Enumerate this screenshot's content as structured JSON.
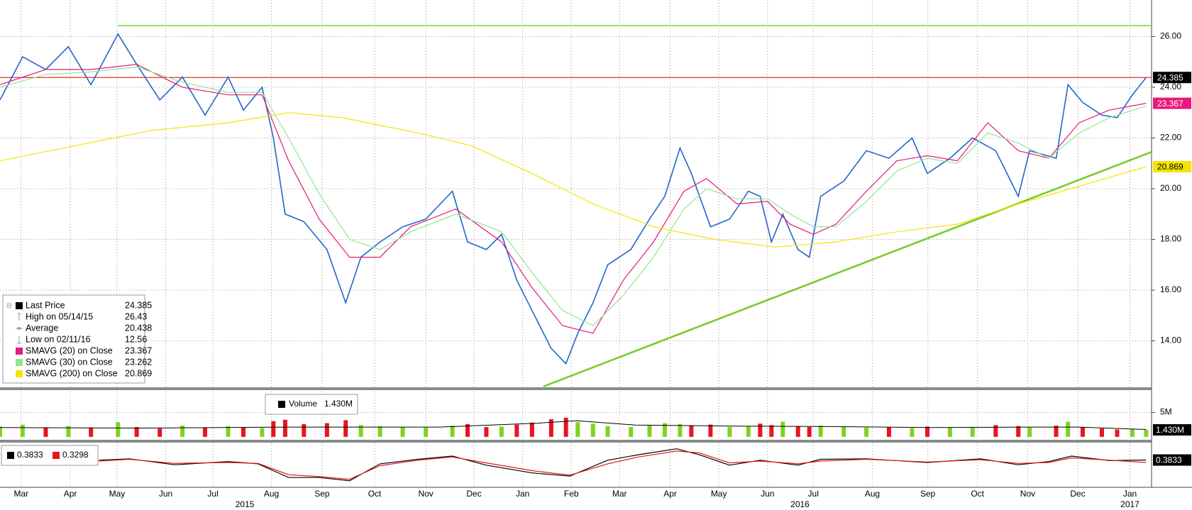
{
  "chart_data": [
    {
      "type": "line",
      "x": [
        2.07,
        2.53,
        3.0,
        3.46,
        3.92,
        4.47,
        4.85,
        5.32,
        5.78,
        6.24,
        6.71,
        7.02,
        7.4,
        7.63,
        7.87,
        8.25,
        8.72,
        9.1,
        9.41,
        9.8,
        10.26,
        10.73,
        11.27,
        11.58,
        11.96,
        12.27,
        12.58,
        12.89,
        13.28,
        13.58,
        13.82,
        14.13,
        14.43,
        14.9,
        15.28,
        15.59,
        15.9,
        16.13,
        16.52,
        16.91,
        17.29,
        17.53,
        17.76,
        17.99,
        18.3,
        18.53,
        18.76,
        19.23,
        19.69,
        20.15,
        20.62,
        20.93,
        21.39,
        21.85,
        22.32,
        22.78,
        23.01,
        23.55,
        23.79,
        24.09,
        24.48,
        24.79,
        25.1,
        25.38
      ],
      "series": [
        {
          "name": "Last Price",
          "color": "#2266cc",
          "legend_color": "#000000",
          "tag": true,
          "tag_text": "#ffffff",
          "legend_value": 24.385,
          "values": [
            23.5,
            25.2,
            24.7,
            25.6,
            24.1,
            26.1,
            24.9,
            23.5,
            24.4,
            22.9,
            24.4,
            23.1,
            24.0,
            22.0,
            19.0,
            18.7,
            17.6,
            15.5,
            17.3,
            17.9,
            18.5,
            18.8,
            19.9,
            17.9,
            17.6,
            18.2,
            16.4,
            15.2,
            13.7,
            13.1,
            14.3,
            15.5,
            17.0,
            17.6,
            18.8,
            19.7,
            21.6,
            20.6,
            18.5,
            18.8,
            19.9,
            19.7,
            17.9,
            19.0,
            17.6,
            17.3,
            19.7,
            20.3,
            21.5,
            21.2,
            22.0,
            20.6,
            21.2,
            22.0,
            21.5,
            19.7,
            21.5,
            21.2,
            24.1,
            23.4,
            22.9,
            22.8,
            23.7,
            24.385
          ]
        },
        {
          "name": "SMAVG (20) on Close",
          "color": "#e8197d",
          "tag": true,
          "tag_text": "#ffffff",
          "legend_value": 23.367,
          "x": [
            2.07,
            3.0,
            3.92,
            4.85,
            5.78,
            6.71,
            7.4,
            7.94,
            8.56,
            9.18,
            9.8,
            10.42,
            11.34,
            12.27,
            12.89,
            13.51,
            14.13,
            14.75,
            15.36,
            15.98,
            16.44,
            17.06,
            17.68,
            18.14,
            18.61,
            19.07,
            19.69,
            20.31,
            20.93,
            21.54,
            22.16,
            22.78,
            23.4,
            24.02,
            24.63,
            25.38
          ],
          "values": [
            24.1,
            24.7,
            24.7,
            24.9,
            24.0,
            23.7,
            23.7,
            21.1,
            18.8,
            17.3,
            17.3,
            18.5,
            19.2,
            17.9,
            16.1,
            14.6,
            14.3,
            16.4,
            17.9,
            19.9,
            20.4,
            19.4,
            19.5,
            18.6,
            18.2,
            18.6,
            19.9,
            21.1,
            21.3,
            21.1,
            22.6,
            21.5,
            21.2,
            22.6,
            23.1,
            23.367
          ]
        },
        {
          "name": "SMAVG (30) on Close",
          "color": "#8ee88e",
          "tag": false,
          "legend_value": 23.262,
          "x": [
            2.07,
            3.0,
            3.92,
            4.85,
            5.78,
            6.71,
            7.4,
            7.94,
            8.56,
            9.18,
            9.8,
            10.42,
            11.34,
            12.27,
            12.89,
            13.51,
            14.13,
            14.75,
            15.36,
            15.98,
            16.44,
            17.06,
            17.68,
            18.14,
            18.61,
            19.07,
            19.69,
            20.31,
            20.93,
            21.54,
            22.16,
            22.78,
            23.4,
            24.02,
            24.63,
            25.38
          ],
          "values": [
            24.0,
            24.5,
            24.6,
            24.8,
            24.2,
            23.8,
            23.8,
            22.0,
            19.8,
            18.0,
            17.6,
            18.3,
            19.0,
            18.3,
            16.7,
            15.2,
            14.6,
            15.8,
            17.3,
            19.2,
            20.0,
            19.6,
            19.6,
            19.0,
            18.5,
            18.5,
            19.5,
            20.7,
            21.2,
            21.0,
            22.2,
            21.8,
            21.2,
            22.2,
            22.8,
            23.262
          ]
        },
        {
          "name": "SMAVG (200) on Close",
          "color": "#f2e600",
          "tag": true,
          "tag_text": "#000000",
          "legend_value": 20.869,
          "x": [
            2.07,
            3.62,
            5.16,
            6.71,
            7.94,
            9.03,
            10.57,
            11.65,
            12.89,
            14.13,
            15.36,
            16.6,
            17.83,
            19.07,
            20.31,
            21.54,
            22.78,
            24.02,
            25.38
          ],
          "values": [
            21.1,
            21.7,
            22.3,
            22.6,
            23.0,
            22.8,
            22.2,
            21.7,
            20.6,
            19.4,
            18.5,
            18.0,
            17.7,
            17.9,
            18.3,
            18.6,
            19.4,
            20.1,
            20.869
          ]
        }
      ],
      "stats": [
        {
          "name": "High on 05/14/15",
          "value": 26.43
        },
        {
          "name": "Average",
          "value": 20.438
        },
        {
          "name": "Low on 02/11/16",
          "value": 12.56
        }
      ],
      "high_x": 4.47,
      "high_line_color": "#66dd33",
      "last_line_color": "#e8302a",
      "trendline": {
        "color": "#77cc22",
        "x": [
          13.12,
          25.49
        ],
        "values": [
          12.2,
          21.45
        ]
      },
      "xlim": [
        2.07,
        25.49
      ],
      "ylim": [
        12.17,
        27.44
      ],
      "yticks": [
        {
          "value": 14,
          "label": "14.00"
        },
        {
          "value": 16,
          "label": "16.00"
        },
        {
          "value": 18,
          "label": "18.00"
        },
        {
          "value": 20,
          "label": "20.00"
        },
        {
          "value": 22,
          "label": "22.00"
        },
        {
          "value": 24,
          "label": "24.00"
        },
        {
          "value": 26,
          "label": "26.00"
        }
      ],
      "xticks": [
        {
          "value": 2.5,
          "label": "Mar"
        },
        {
          "value": 3.5,
          "label": "Apr"
        },
        {
          "value": 4.45,
          "label": "May"
        },
        {
          "value": 5.44,
          "label": "Jun"
        },
        {
          "value": 6.4,
          "label": "Jul"
        },
        {
          "value": 7.59,
          "label": "Aug"
        },
        {
          "value": 8.62,
          "label": "Sep"
        },
        {
          "value": 9.69,
          "label": "Oct"
        },
        {
          "value": 10.73,
          "label": "Nov"
        },
        {
          "value": 11.71,
          "label": "Dec"
        },
        {
          "value": 12.7,
          "label": "Jan"
        },
        {
          "value": 13.69,
          "label": "Feb"
        },
        {
          "value": 14.67,
          "label": "Mar"
        },
        {
          "value": 15.7,
          "label": "Apr"
        },
        {
          "value": 16.69,
          "label": "May"
        },
        {
          "value": 17.68,
          "label": "Jun"
        },
        {
          "value": 18.61,
          "label": "Jul"
        },
        {
          "value": 19.81,
          "label": "Aug"
        },
        {
          "value": 20.94,
          "label": "Sep"
        },
        {
          "value": 21.95,
          "label": "Oct"
        },
        {
          "value": 22.97,
          "label": "Nov"
        },
        {
          "value": 23.99,
          "label": "Dec"
        },
        {
          "value": 25.05,
          "label": "Jan"
        }
      ],
      "year_ticks": [
        {
          "value": 7.05,
          "label": "2015"
        },
        {
          "value": 18.34,
          "label": "2016"
        },
        {
          "value": 25.05,
          "label": "2017"
        }
      ],
      "grid": true,
      "legend": "lower left"
    },
    {
      "type": "bar",
      "legend_name": "Volume",
      "value": 1.43,
      "value_label": "1.430M",
      "up_color": "#7ed321",
      "down_color": "#e8141e",
      "values": [
        2.1,
        2.5,
        1.8,
        2.2,
        1.9,
        3.0,
        2.0,
        1.7,
        2.3,
        1.9,
        2.2,
        2.0,
        1.8,
        3.2,
        3.5,
        2.6,
        2.8,
        3.4,
        2.4,
        2.2,
        2.0,
        1.9,
        2.3,
        2.6,
        2.0,
        2.1,
        2.5,
        2.9,
        3.6,
        3.9,
        3.0,
        2.7,
        2.2,
        2.0,
        2.4,
        2.8,
        2.6,
        2.3,
        2.5,
        2.0,
        2.2,
        2.7,
        2.4,
        3.1,
        2.2,
        2.0,
        2.3,
        2.1,
        1.9,
        2.0,
        1.8,
        2.1,
        1.9,
        2.0,
        2.4,
        2.2,
        1.9,
        2.3,
        3.1,
        2.0,
        1.7,
        1.5,
        1.6,
        1.43
      ],
      "average": {
        "color": "#000000",
        "x": [
          2.07,
          5,
          8,
          11,
          13,
          13.8,
          15,
          17,
          19,
          21,
          23,
          24,
          25.38
        ],
        "values": [
          1.9,
          1.8,
          2.0,
          2.0,
          2.8,
          3.3,
          2.4,
          2.2,
          2.1,
          1.9,
          2.0,
          2.0,
          1.5
        ]
      },
      "ylim": [
        -0.45,
        9.4
      ],
      "yticks": [
        {
          "value": 5,
          "label": "5M"
        }
      ]
    },
    {
      "type": "line",
      "ylim": [
        -0.2,
        0.75
      ],
      "series": [
        {
          "color": "#000000",
          "legend_value": 0.3833,
          "tag": true,
          "x": [
            4.08,
            4.7,
            5.62,
            6.71,
            7.32,
            7.94,
            8.56,
            9.18,
            9.8,
            10.57,
            11.27,
            11.96,
            12.89,
            13.66,
            14.43,
            15.05,
            15.83,
            16.29,
            16.91,
            17.53,
            18.3,
            18.76,
            19.69,
            20.93,
            22.01,
            22.78,
            23.4,
            23.86,
            24.64,
            25.38
          ],
          "values": [
            0.38,
            0.41,
            0.28,
            0.35,
            0.3,
            0.0,
            0.0,
            -0.07,
            0.3,
            0.4,
            0.47,
            0.27,
            0.1,
            0.03,
            0.38,
            0.5,
            0.63,
            0.5,
            0.27,
            0.38,
            0.27,
            0.4,
            0.41,
            0.33,
            0.41,
            0.28,
            0.35,
            0.47,
            0.37,
            0.3833
          ]
        },
        {
          "color": "#e8141e",
          "legend_value": 0.3298,
          "tag": false,
          "x": [
            4.08,
            4.7,
            5.62,
            6.71,
            7.32,
            7.94,
            8.56,
            9.18,
            9.8,
            10.57,
            11.27,
            11.96,
            12.89,
            13.66,
            14.43,
            15.05,
            15.83,
            16.29,
            16.91,
            17.53,
            18.3,
            18.76,
            19.69,
            20.93,
            22.01,
            22.78,
            23.4,
            23.86,
            24.64,
            25.38
          ],
          "values": [
            0.36,
            0.4,
            0.31,
            0.33,
            0.31,
            0.06,
            0.02,
            -0.04,
            0.26,
            0.38,
            0.45,
            0.32,
            0.15,
            0.05,
            0.3,
            0.45,
            0.58,
            0.54,
            0.32,
            0.36,
            0.3,
            0.36,
            0.4,
            0.34,
            0.39,
            0.31,
            0.33,
            0.43,
            0.38,
            0.3298
          ]
        }
      ]
    }
  ]
}
